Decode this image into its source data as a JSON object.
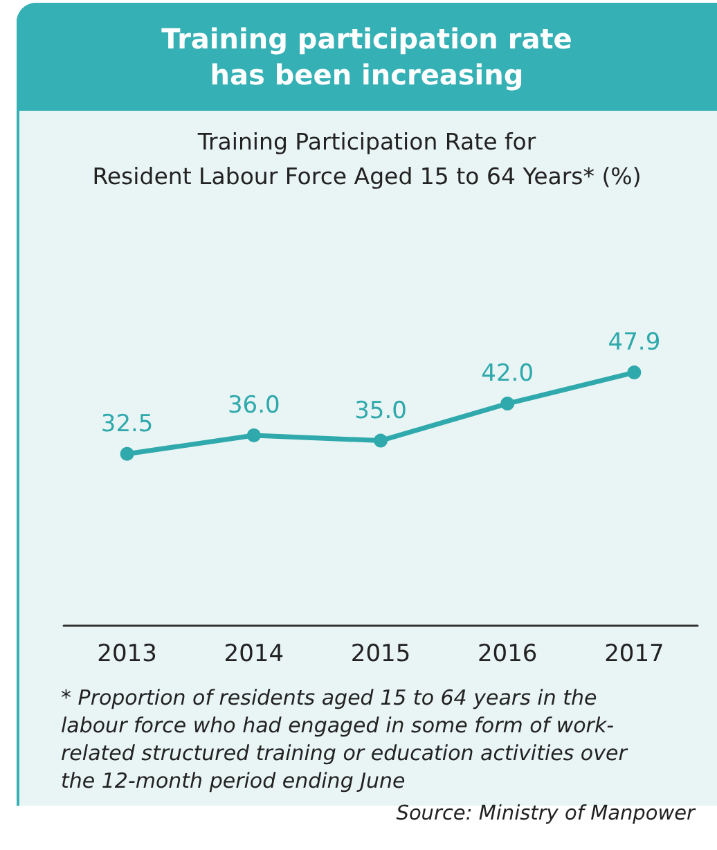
{
  "chart_data": {
    "type": "line",
    "title": "Training participation rate\nhas been increasing",
    "subtitle": "Training Participation Rate for\nResident Labour Force Aged 15 to 64 Years* (%)",
    "categories": [
      "2013",
      "2014",
      "2015",
      "2016",
      "2017"
    ],
    "series": [
      {
        "color": "#2fa9ac",
        "values": [
          32.5,
          36.0,
          35.0,
          42.0,
          47.9
        ],
        "value_labels": [
          "32.5",
          "36.0",
          "35.0",
          "42.0",
          "47.9"
        ]
      }
    ],
    "marker": "circle",
    "line_style": "solid",
    "grid": false,
    "tick_labels": "x",
    "annotations": [
      "* Proportion of residents aged 15 to 64 years in the labour force who had engaged in some form of work-related structured training or education activities over the 12-month period ending June",
      "Source: Ministry of Manpower"
    ]
  }
}
